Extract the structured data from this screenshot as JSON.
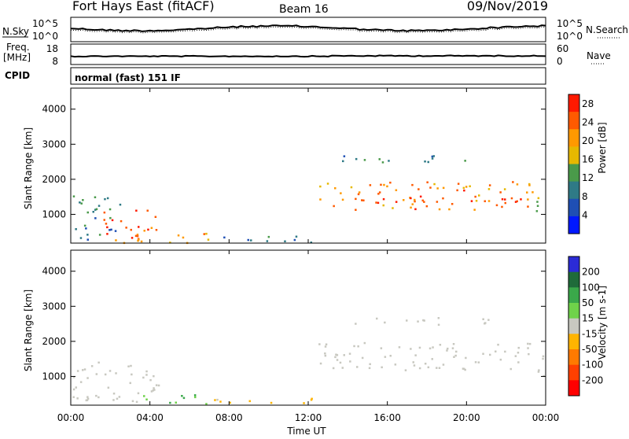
{
  "header": {
    "station": "Fort Hays East (fitACF)",
    "beam": "Beam 16",
    "date": "09/Nov/2019"
  },
  "sky_panel": {
    "left_label": "N.Sky",
    "right_label": "N.Search",
    "ticks": [
      "10^5",
      "10^0"
    ]
  },
  "freq_panel": {
    "left_label_top": "Freq.",
    "left_label_bottom": "[MHz]",
    "right_label": "Nave",
    "left_ticks": [
      "18",
      "8"
    ],
    "right_ticks": [
      "60",
      "0"
    ]
  },
  "cpid_panel": {
    "label": "CPID",
    "text": "normal (fast) 151 IF"
  },
  "xaxis": {
    "label": "Time UT",
    "ticks": [
      "00:00",
      "04:00",
      "08:00",
      "12:00",
      "16:00",
      "20:00",
      "00:00"
    ]
  },
  "colors": {
    "power_scale": [
      "#0018ff",
      "#1f4fb4",
      "#2f7a86",
      "#4a9a4a",
      "#e6b800",
      "#ff9900",
      "#ff5a00",
      "#ff1a00"
    ],
    "velocity_scale": [
      "#2b2bd6",
      "#1f6b3a",
      "#3aa84a",
      "#6fd24a",
      "#c8c8c0",
      "#ffb400",
      "#ff7a00",
      "#ff4000",
      "#ff0000"
    ]
  },
  "chart_data": [
    {
      "type": "heatmap",
      "ylabel": "Slant Range [km]",
      "xlabel": "",
      "x_range_hours": [
        0,
        24
      ],
      "ylim": [
        180,
        4600
      ],
      "yticks": [
        "1000",
        "2000",
        "3000",
        "4000"
      ],
      "colorbar": {
        "label": "Power [dB]",
        "ticks": [
          "4",
          "8",
          "12",
          "16",
          "20",
          "24",
          "28"
        ],
        "range": [
          0,
          30
        ]
      },
      "regions": [
        {
          "x": [
            0.0,
            2.5
          ],
          "y": [
            300,
            1550
          ],
          "value": 10
        },
        {
          "x": [
            1.5,
            4.3
          ],
          "y": [
            200,
            1150
          ],
          "value": 24
        },
        {
          "x": [
            2.7,
            4.0
          ],
          "y": [
            200,
            700
          ],
          "value": 28
        },
        {
          "x": [
            4.5,
            7.0
          ],
          "y": [
            200,
            550
          ],
          "value": 20
        },
        {
          "x": [
            7.0,
            12.3
          ],
          "y": [
            200,
            400
          ],
          "value": 8
        },
        {
          "x": [
            12.5,
            23.5
          ],
          "y": [
            1150,
            1950
          ],
          "value": 22
        },
        {
          "x": [
            13.0,
            23.0
          ],
          "y": [
            1350,
            1500
          ],
          "value": 28
        },
        {
          "x": [
            13.5,
            21.5
          ],
          "y": [
            2500,
            2700
          ],
          "value": 10
        },
        {
          "x": [
            23.5,
            24.0
          ],
          "y": [
            800,
            1800
          ],
          "value": 12
        }
      ]
    },
    {
      "type": "heatmap",
      "ylabel": "Slant Range [km]",
      "xlabel": "Time UT",
      "x_range_hours": [
        0,
        24
      ],
      "ylim": [
        180,
        4600
      ],
      "yticks": [
        "1000",
        "2000",
        "3000",
        "4000"
      ],
      "colorbar": {
        "label": "Velocity [m s-1]",
        "ticks": [
          "200",
          "100",
          "50",
          "15",
          "-15",
          "-50",
          "-100",
          "-200"
        ],
        "range": [
          -200,
          200
        ]
      },
      "regions": [
        {
          "x": [
            0.0,
            4.5
          ],
          "y": [
            300,
            1500
          ],
          "value": 0
        },
        {
          "x": [
            3.5,
            7.0
          ],
          "y": [
            200,
            500
          ],
          "value": 60
        },
        {
          "x": [
            7.0,
            12.3
          ],
          "y": [
            200,
            400
          ],
          "value": -30
        },
        {
          "x": [
            12.5,
            23.5
          ],
          "y": [
            1200,
            2000
          ],
          "value": 0
        },
        {
          "x": [
            13.5,
            21.5
          ],
          "y": [
            2500,
            2700
          ],
          "value": 0
        },
        {
          "x": [
            23.5,
            24.0
          ],
          "y": [
            700,
            1800
          ],
          "value": 0
        }
      ]
    }
  ]
}
